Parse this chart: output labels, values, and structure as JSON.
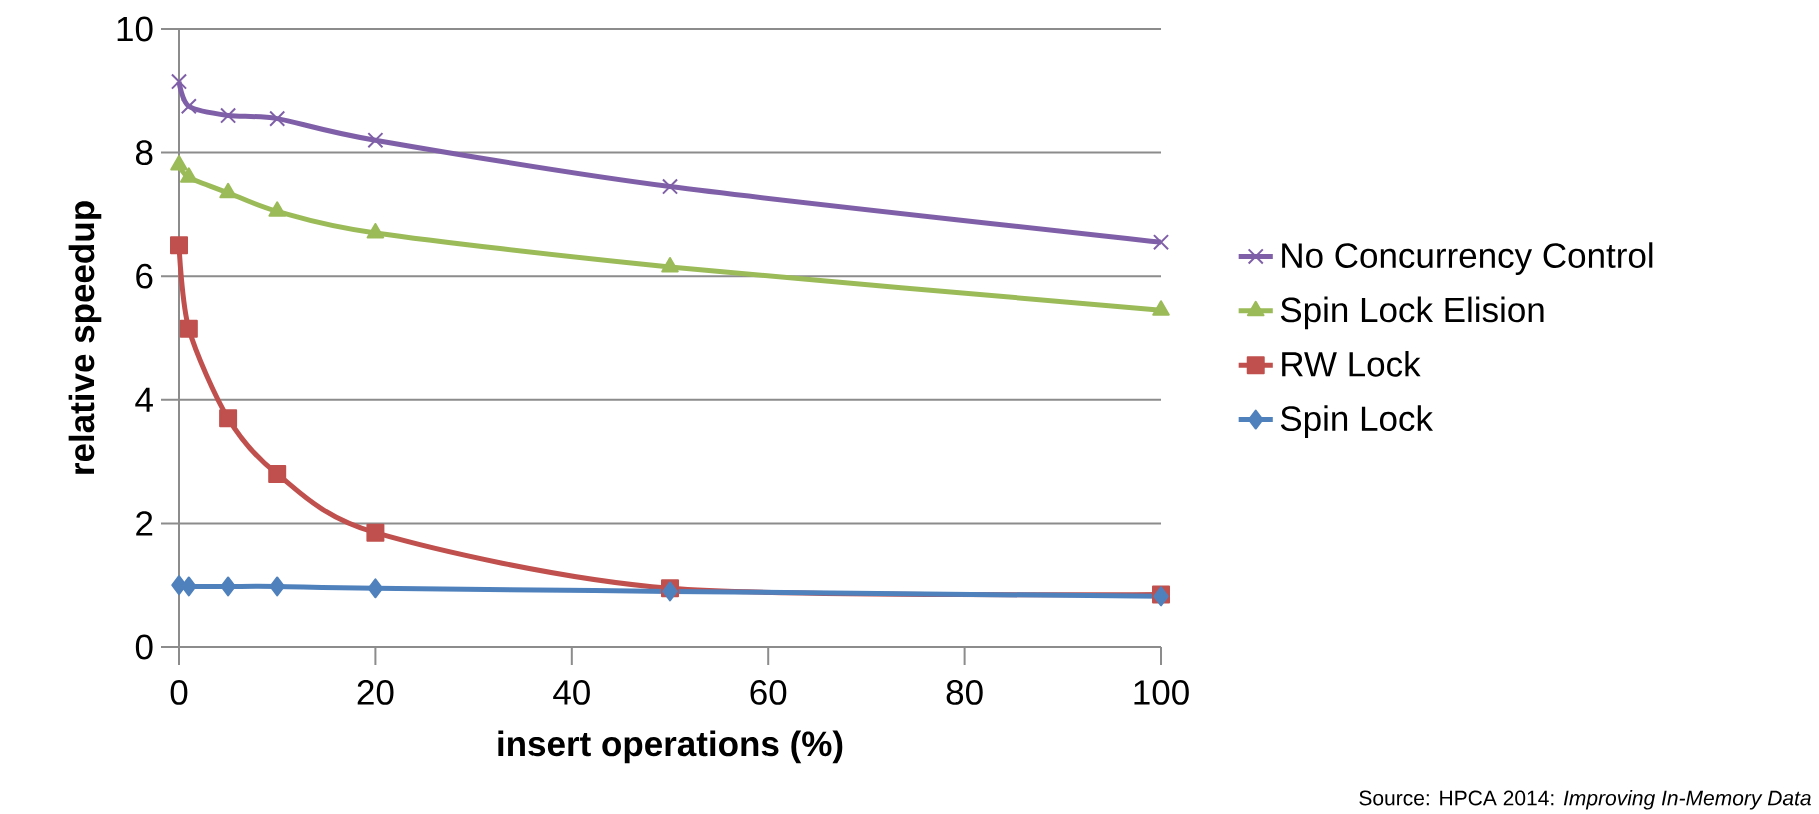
{
  "chart_data": {
    "type": "line",
    "xlabel": "insert operations (%)",
    "ylabel": "relative speedup",
    "x": [
      0,
      1,
      5,
      10,
      20,
      50,
      100
    ],
    "series": [
      {
        "name": "No Concurrency Control",
        "color": "#7f60a8",
        "marker": "cross",
        "values": [
          9.15,
          8.75,
          8.6,
          8.55,
          8.2,
          7.45,
          6.55
        ]
      },
      {
        "name": "Spin Lock Elision",
        "color": "#9bbb59",
        "marker": "triangle",
        "values": [
          7.8,
          7.6,
          7.35,
          7.05,
          6.7,
          6.15,
          5.45
        ]
      },
      {
        "name": "RW Lock",
        "color": "#c0504d",
        "marker": "square",
        "values": [
          6.5,
          5.15,
          3.7,
          2.8,
          1.85,
          0.95,
          0.85
        ]
      },
      {
        "name": "Spin Lock",
        "color": "#4f81bd",
        "marker": "diamond",
        "values": [
          1.0,
          0.98,
          0.98,
          0.98,
          0.95,
          0.9,
          0.82
        ]
      }
    ],
    "xlim": [
      0,
      100
    ],
    "xticks": [
      0,
      20,
      40,
      60,
      80,
      100
    ],
    "ylim": [
      0,
      10
    ],
    "yticks": [
      0,
      2,
      4,
      6,
      8,
      10
    ],
    "grid": "y",
    "legend": "right",
    "line_style": "solid",
    "annotations": [
      "Source: HPCA 2014: *Improving In-Memory Data*"
    ]
  }
}
